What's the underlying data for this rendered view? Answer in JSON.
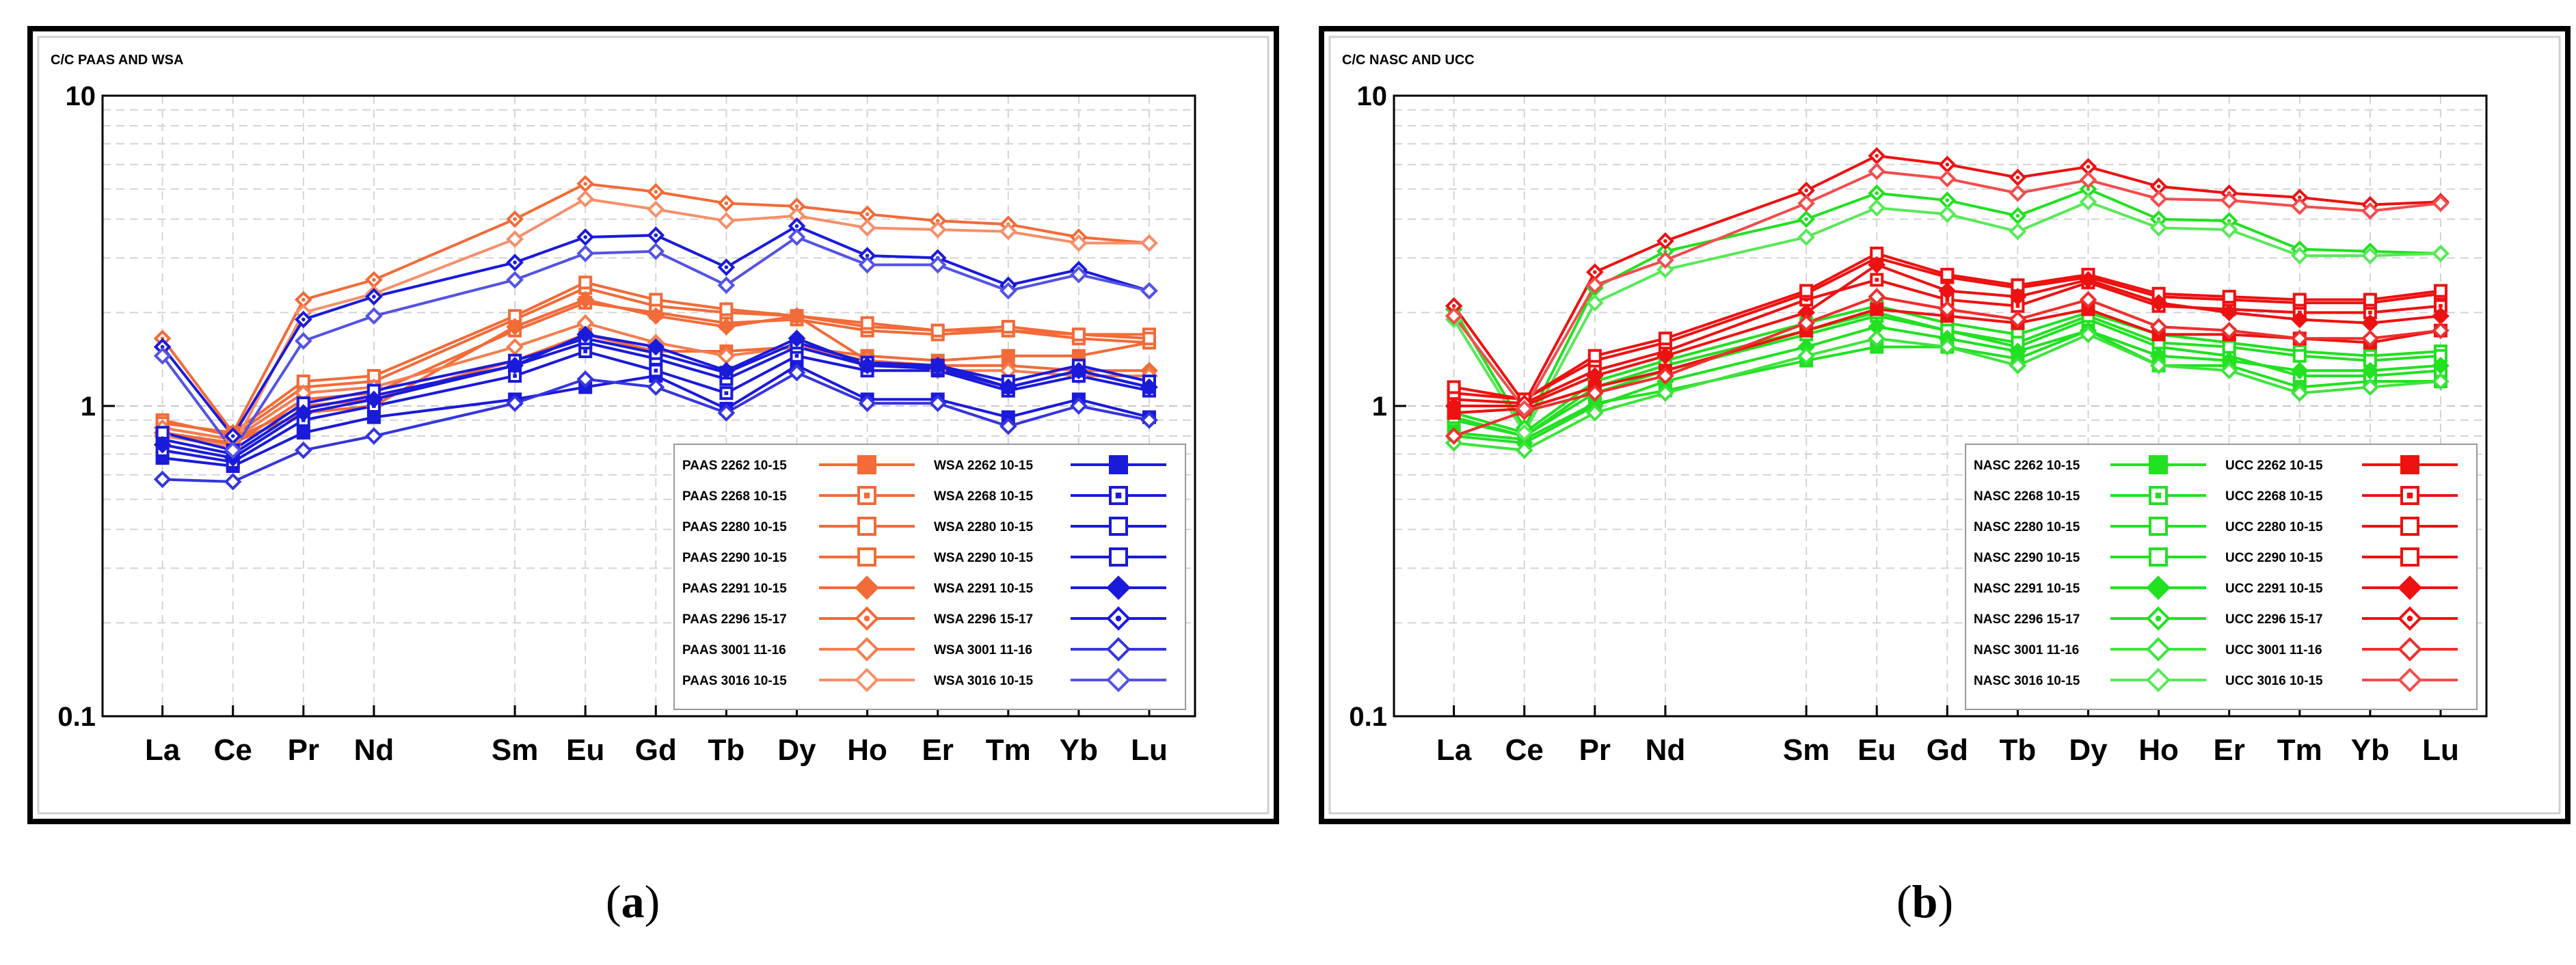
{
  "panels": [
    {
      "label": "a",
      "colors": {
        "first": "#F26B38",
        "second": "#1A1ADB"
      },
      "chart_data": {
        "type": "line",
        "title": "C/C PAAS AND WSA",
        "xlabel": "",
        "ylabel": "",
        "yscale": "log",
        "ylim": [
          0.1,
          10
        ],
        "y_tick_labels": [
          "10",
          "1",
          "0.1"
        ],
        "categories": [
          "La",
          "Ce",
          "Pr",
          "Nd",
          "Sm",
          "Eu",
          "Gd",
          "Tb",
          "Dy",
          "Ho",
          "Er",
          "Tm",
          "Yb",
          "Lu"
        ],
        "x_positions": [
          1,
          2,
          3,
          4,
          6,
          7,
          8,
          9,
          10,
          11,
          12,
          13,
          14,
          15
        ],
        "legend": "bottom-right",
        "series": [
          {
            "name": "PAAS 2262 10-15",
            "group": "first",
            "marker": "square-filled",
            "values": [
              0.85,
              0.78,
              1.0,
              1.05,
              1.4,
              1.7,
              1.5,
              1.5,
              1.55,
              1.45,
              1.4,
              1.45,
              1.45,
              1.6
            ]
          },
          {
            "name": "PAAS 2268 10-15",
            "group": "first",
            "marker": "square-dot",
            "values": [
              0.8,
              0.75,
              1.05,
              1.1,
              1.75,
              2.15,
              2.0,
              1.85,
              1.9,
              1.75,
              1.7,
              1.75,
              1.7,
              1.7
            ]
          },
          {
            "name": "PAAS 2280 10-15",
            "group": "first",
            "marker": "square-open",
            "values": [
              0.9,
              0.8,
              1.15,
              1.2,
              1.9,
              2.4,
              2.1,
              2.0,
              1.95,
              1.8,
              1.75,
              1.75,
              1.65,
              1.6
            ]
          },
          {
            "name": "PAAS 2290 10-15",
            "group": "first",
            "marker": "square-open",
            "values": [
              0.88,
              0.82,
              1.2,
              1.25,
              1.95,
              2.5,
              2.2,
              2.05,
              1.95,
              1.85,
              1.75,
              1.8,
              1.7,
              1.65
            ]
          },
          {
            "name": "PAAS 2291 10-15",
            "group": "first",
            "marker": "diamond-filled",
            "values": [
              0.82,
              0.76,
              0.95,
              1.0,
              1.8,
              2.2,
              1.95,
              1.8,
              1.95,
              1.4,
              1.35,
              1.35,
              1.3,
              1.3
            ]
          },
          {
            "name": "PAAS 2296 15-17",
            "group": "first",
            "marker": "diamond-dot",
            "values": [
              1.65,
              0.82,
              2.2,
              2.55,
              4.0,
              5.2,
              4.9,
              4.5,
              4.4,
              4.15,
              3.95,
              3.85,
              3.5,
              3.35
            ]
          },
          {
            "name": "PAAS 3001 11-16",
            "group": "first",
            "marker": "diamond-open",
            "values": [
              0.85,
              0.78,
              1.1,
              1.15,
              1.55,
              1.85,
              1.6,
              1.45,
              1.55,
              1.4,
              1.3,
              1.3,
              1.25,
              1.25
            ]
          },
          {
            "name": "PAAS 3016 10-15",
            "group": "first",
            "marker": "diamond-open",
            "values": [
              0.8,
              0.74,
              2.0,
              2.3,
              3.45,
              4.65,
              4.3,
              3.95,
              4.1,
              3.75,
              3.7,
              3.65,
              3.35,
              3.35
            ]
          },
          {
            "name": "WSA 2262 10-15",
            "group": "second",
            "marker": "square-filled",
            "values": [
              0.68,
              0.64,
              0.82,
              0.92,
              1.05,
              1.15,
              1.25,
              0.98,
              1.35,
              1.05,
              1.05,
              0.92,
              1.05,
              0.92
            ]
          },
          {
            "name": "WSA 2268 10-15",
            "group": "second",
            "marker": "square-dot",
            "values": [
              0.72,
              0.66,
              0.9,
              1.0,
              1.25,
              1.5,
              1.3,
              1.1,
              1.45,
              1.3,
              1.3,
              1.12,
              1.25,
              1.12
            ]
          },
          {
            "name": "WSA 2280 10-15",
            "group": "second",
            "marker": "square-open",
            "values": [
              0.78,
              0.7,
              0.98,
              1.08,
              1.35,
              1.6,
              1.42,
              1.22,
              1.55,
              1.35,
              1.32,
              1.15,
              1.3,
              1.15
            ]
          },
          {
            "name": "WSA 2290 10-15",
            "group": "second",
            "marker": "square-open",
            "values": [
              0.82,
              0.72,
              1.02,
              1.12,
              1.4,
              1.65,
              1.48,
              1.28,
              1.6,
              1.38,
              1.35,
              1.2,
              1.35,
              1.2
            ]
          },
          {
            "name": "WSA 2291 10-15",
            "group": "second",
            "marker": "diamond-filled",
            "values": [
              0.75,
              0.68,
              0.95,
              1.05,
              1.35,
              1.7,
              1.55,
              1.3,
              1.65,
              1.35,
              1.35,
              1.15,
              1.3,
              1.15
            ]
          },
          {
            "name": "WSA 2296 15-17",
            "group": "second",
            "marker": "diamond-dot",
            "values": [
              1.55,
              0.8,
              1.9,
              2.25,
              2.9,
              3.5,
              3.55,
              2.8,
              3.8,
              3.05,
              3.0,
              2.45,
              2.75,
              2.35
            ]
          },
          {
            "name": "WSA 3001 11-16",
            "group": "second",
            "marker": "diamond-open",
            "values": [
              0.58,
              0.57,
              0.72,
              0.8,
              1.02,
              1.22,
              1.15,
              0.95,
              1.28,
              1.02,
              1.02,
              0.86,
              1.0,
              0.9
            ]
          },
          {
            "name": "WSA 3016 10-15",
            "group": "second",
            "marker": "diamond-open",
            "values": [
              1.45,
              0.72,
              1.62,
              1.95,
              2.55,
              3.1,
              3.15,
              2.45,
              3.5,
              2.85,
              2.85,
              2.35,
              2.65,
              2.35
            ]
          }
        ]
      }
    },
    {
      "label": "b",
      "colors": {
        "first": "#22E022",
        "second": "#EE1111"
      },
      "chart_data": {
        "type": "line",
        "title": "C/C NASC AND UCC",
        "xlabel": "",
        "ylabel": "",
        "yscale": "log",
        "ylim": [
          0.1,
          10
        ],
        "y_tick_labels": [
          "10",
          "1",
          "0.1"
        ],
        "categories": [
          "La",
          "Ce",
          "Pr",
          "Nd",
          "Sm",
          "Eu",
          "Gd",
          "Tb",
          "Dy",
          "Ho",
          "Er",
          "Tm",
          "Yb",
          "Lu"
        ],
        "x_positions": [
          1,
          2,
          3,
          4,
          6,
          7,
          8,
          9,
          10,
          11,
          12,
          13,
          14,
          15
        ],
        "legend": "bottom-right",
        "series": [
          {
            "name": "NASC 2262 10-15",
            "group": "first",
            "marker": "square-filled",
            "values": [
              0.82,
              0.78,
              1.02,
              1.12,
              1.4,
              1.55,
              1.55,
              1.42,
              1.75,
              1.35,
              1.35,
              1.15,
              1.2,
              1.2
            ]
          },
          {
            "name": "NASC 2268 10-15",
            "group": "first",
            "marker": "square-dot",
            "values": [
              0.9,
              0.8,
              1.1,
              1.3,
              1.7,
              1.95,
              1.75,
              1.55,
              1.9,
              1.55,
              1.45,
              1.25,
              1.25,
              1.3
            ]
          },
          {
            "name": "NASC 2280 10-15",
            "group": "first",
            "marker": "square-open",
            "values": [
              0.95,
              0.82,
              1.2,
              1.4,
              1.85,
              2.1,
              1.85,
              1.7,
              2.0,
              1.7,
              1.6,
              1.5,
              1.45,
              1.5
            ]
          },
          {
            "name": "NASC 2290 10-15",
            "group": "first",
            "marker": "square-open",
            "values": [
              0.92,
              0.8,
              1.15,
              1.35,
              1.75,
              2.0,
              1.75,
              1.6,
              1.95,
              1.6,
              1.55,
              1.45,
              1.4,
              1.45
            ]
          },
          {
            "name": "NASC 2291 10-15",
            "group": "first",
            "marker": "diamond-filled",
            "values": [
              0.8,
              0.76,
              1.0,
              1.2,
              1.55,
              1.8,
              1.65,
              1.5,
              1.75,
              1.45,
              1.4,
              1.3,
              1.3,
              1.35
            ]
          },
          {
            "name": "NASC 2296 15-17",
            "group": "first",
            "marker": "diamond-dot",
            "values": [
              2.05,
              0.85,
              2.4,
              3.15,
              4.0,
              4.85,
              4.6,
              4.1,
              5.0,
              4.0,
              3.95,
              3.2,
              3.15,
              3.1
            ]
          },
          {
            "name": "NASC 3001 11-16",
            "group": "first",
            "marker": "diamond-open",
            "values": [
              0.76,
              0.72,
              0.95,
              1.1,
              1.45,
              1.65,
              1.55,
              1.35,
              1.7,
              1.35,
              1.3,
              1.1,
              1.15,
              1.2
            ]
          },
          {
            "name": "NASC 3016 10-15",
            "group": "first",
            "marker": "diamond-open",
            "values": [
              1.9,
              0.82,
              2.15,
              2.75,
              3.5,
              4.35,
              4.15,
              3.65,
              4.55,
              3.75,
              3.7,
              3.05,
              3.05,
              3.1
            ]
          },
          {
            "name": "UCC 2262 10-15",
            "group": "second",
            "marker": "square-filled",
            "values": [
              0.95,
              0.98,
              1.15,
              1.3,
              1.75,
              2.05,
              1.95,
              1.85,
              2.05,
              1.7,
              1.7,
              1.65,
              1.6,
              1.75
            ]
          },
          {
            "name": "UCC 2268 10-15",
            "group": "second",
            "marker": "square-dot",
            "values": [
              1.05,
              1.02,
              1.3,
              1.5,
              2.2,
              2.55,
              2.2,
              2.1,
              2.5,
              2.1,
              2.05,
              2.0,
              2.0,
              2.1
            ]
          },
          {
            "name": "UCC 2280 10-15",
            "group": "second",
            "marker": "square-open",
            "values": [
              1.1,
              1.05,
              1.4,
              1.6,
              2.3,
              3.0,
              2.6,
              2.4,
              2.6,
              2.25,
              2.2,
              2.15,
              2.15,
              2.3
            ]
          },
          {
            "name": "UCC 2290 10-15",
            "group": "second",
            "marker": "square-open",
            "values": [
              1.15,
              1.05,
              1.45,
              1.65,
              2.35,
              3.1,
              2.65,
              2.45,
              2.65,
              2.3,
              2.25,
              2.2,
              2.2,
              2.35
            ]
          },
          {
            "name": "UCC 2291 10-15",
            "group": "second",
            "marker": "diamond-filled",
            "values": [
              1.0,
              1.0,
              1.25,
              1.45,
              2.0,
              2.85,
              2.35,
              2.25,
              2.55,
              2.15,
              2.0,
              1.9,
              1.85,
              1.95
            ]
          },
          {
            "name": "UCC 2296 15-17",
            "group": "second",
            "marker": "diamond-dot",
            "values": [
              2.1,
              1.02,
              2.7,
              3.4,
              4.95,
              6.4,
              6.0,
              5.45,
              5.9,
              5.1,
              4.85,
              4.7,
              4.45,
              4.55
            ]
          },
          {
            "name": "UCC 3001 11-16",
            "group": "second",
            "marker": "diamond-open",
            "values": [
              0.8,
              0.96,
              1.1,
              1.25,
              1.85,
              2.25,
              2.05,
              1.9,
              2.2,
              1.8,
              1.75,
              1.65,
              1.65,
              1.75
            ]
          },
          {
            "name": "UCC 3016 10-15",
            "group": "second",
            "marker": "diamond-open",
            "values": [
              1.95,
              0.98,
              2.45,
              2.95,
              4.5,
              5.7,
              5.4,
              4.85,
              5.35,
              4.65,
              4.6,
              4.4,
              4.25,
              4.5
            ]
          }
        ]
      }
    }
  ]
}
